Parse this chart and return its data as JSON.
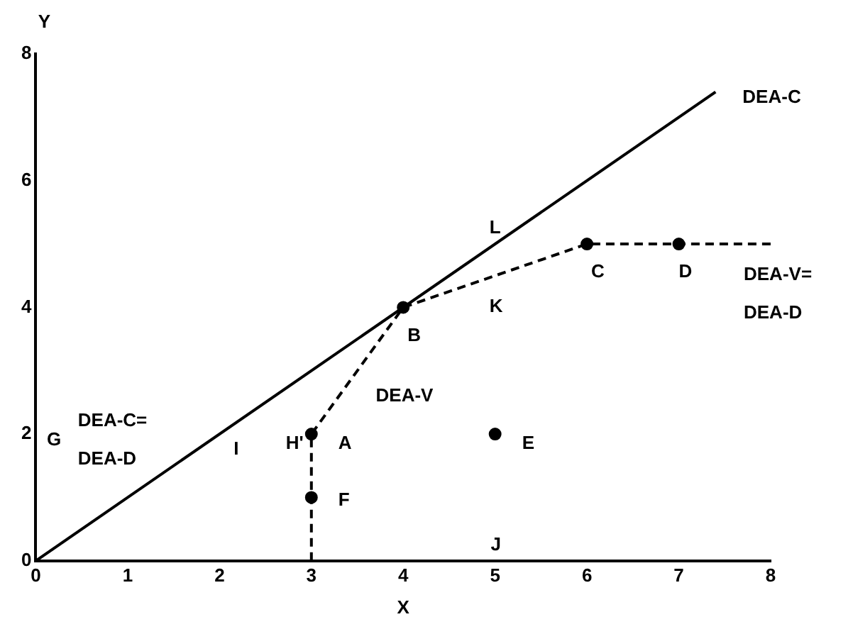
{
  "chart_data": {
    "type": "line",
    "xlabel": "X",
    "ylabel": "Y",
    "xlim": [
      0,
      8
    ],
    "xticks": [
      0,
      1,
      2,
      3,
      4,
      5,
      6,
      7,
      8
    ],
    "ylim": [
      0,
      8
    ],
    "yticks": [
      0,
      2,
      4,
      6,
      8
    ],
    "grid": false,
    "legend": false,
    "series": [
      {
        "type": "line",
        "color": "#000000",
        "line_style": "solid",
        "marker": "none",
        "x": [
          0,
          7.4
        ],
        "values": [
          0,
          7.4
        ]
      },
      {
        "type": "line",
        "color": "#000000",
        "line_style": "dashed",
        "marker": "none",
        "x": [
          3,
          3,
          4,
          6,
          7,
          8
        ],
        "values": [
          0,
          2,
          4,
          5,
          5,
          5
        ]
      },
      {
        "type": "scatter",
        "color": "#000000",
        "marker": "circle",
        "x": [
          3,
          4,
          6,
          7,
          5,
          3
        ],
        "values": [
          2,
          4,
          5,
          5,
          2,
          1
        ]
      }
    ],
    "annotations": [
      "G",
      {
        "text": "DEA-C=\nDEA-D",
        "x": 1.2,
        "y": 1.2
      },
      {
        "text": "I",
        "x": 2,
        "y": 2
      },
      {
        "text": "H'",
        "x": 3,
        "y": 2
      },
      {
        "text": "A",
        "x": 3,
        "y": 2
      },
      {
        "text": "F",
        "x": 3,
        "y": 1
      },
      {
        "text": "B",
        "x": 4,
        "y": 4
      },
      {
        "text": "DEA-V",
        "x": 3.5,
        "y": 3
      },
      {
        "text": "L",
        "x": 5,
        "y": 5
      },
      {
        "text": "K",
        "x": 5,
        "y": 4.5
      },
      {
        "text": "E",
        "x": 5,
        "y": 2
      },
      "J",
      {
        "text": "C",
        "x": 6,
        "y": 5
      },
      {
        "text": "D",
        "x": 7,
        "y": 5
      },
      {
        "text": "DEA-C",
        "x": 7.4,
        "y": 7.4
      },
      {
        "text": "DEA-V=\nDEA-D",
        "x": 8,
        "y": 5
      }
    ]
  }
}
